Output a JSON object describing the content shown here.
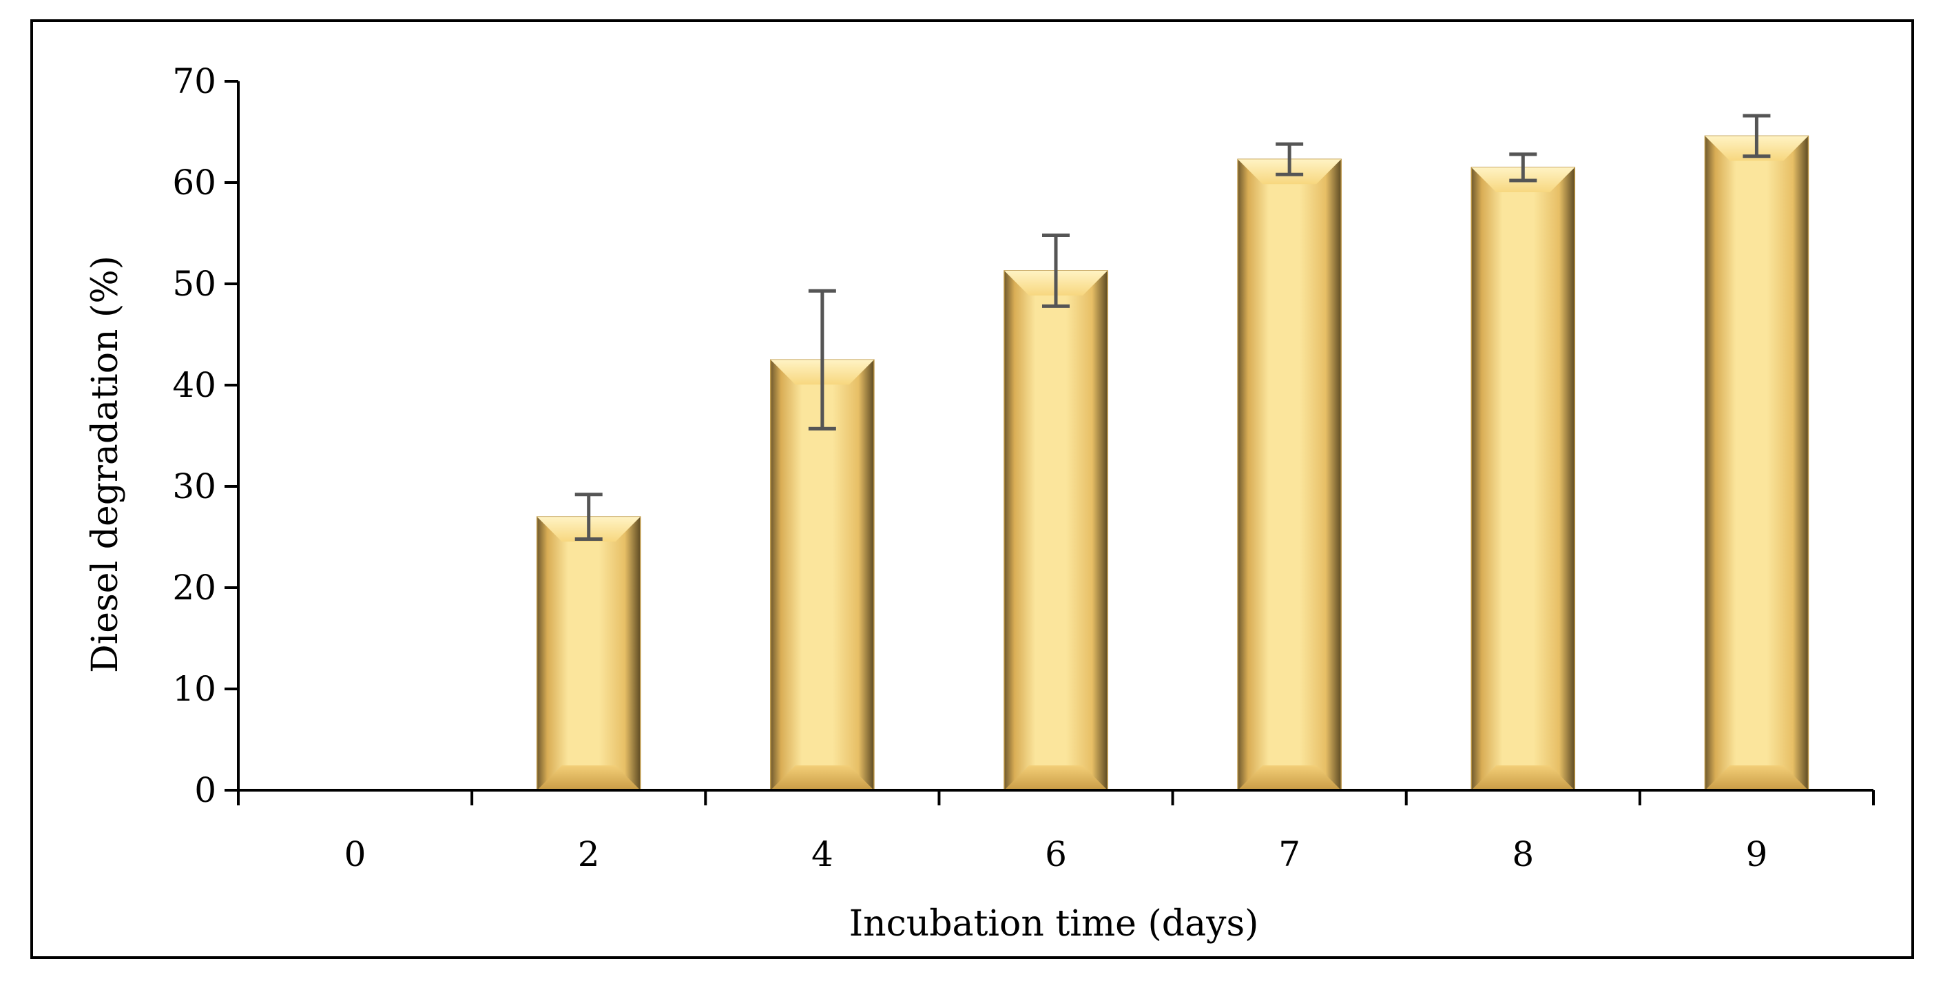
{
  "chart_data": {
    "type": "bar",
    "title": "",
    "xlabel": "Incubation time (days)",
    "ylabel": "Diesel degradation (%)",
    "categories": [
      "0",
      "2",
      "4",
      "6",
      "7",
      "8",
      "9"
    ],
    "values": [
      0,
      27,
      42.5,
      51.3,
      62.3,
      61.5,
      64.6
    ],
    "error": [
      0,
      2.2,
      6.8,
      3.5,
      1.5,
      1.3,
      2.0
    ],
    "ylim": [
      0,
      70
    ],
    "yticks": [
      0,
      10,
      20,
      30,
      40,
      50,
      60,
      70
    ],
    "yticklabels": [
      "0",
      "10",
      "20",
      "30",
      "40",
      "50",
      "60",
      "70"
    ],
    "grid": false,
    "legend": "none",
    "colors": {
      "bar_face": "#fbe59c",
      "bar_mid": "#f5cc6f",
      "bar_edge": "#b8913f",
      "bar_shadow": "#6f5a2e",
      "error_bar": "#555555",
      "axis": "#000000"
    }
  }
}
